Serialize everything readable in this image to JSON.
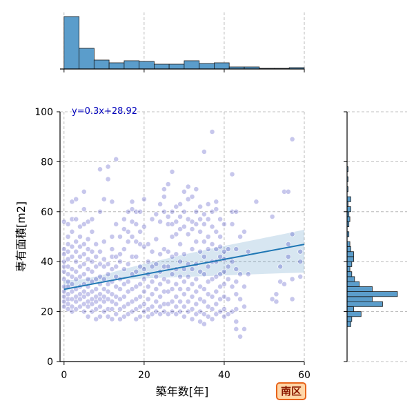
{
  "badge": "南区",
  "colors": {
    "point": "#0000aa",
    "regression": "#1f77b4",
    "histogram_fill": "#5b9dcb",
    "badge_border": "#e8641b",
    "badge_fill": "#ffd7a8"
  },
  "chart_data": {
    "type": "scatter",
    "title": "",
    "xlabel": "築年数[年]",
    "ylabel": "専有面積[m2]",
    "xlim": [
      -1,
      60
    ],
    "ylim": [
      0,
      100
    ],
    "xticks": [
      0,
      20,
      40,
      60
    ],
    "yticks": [
      0,
      20,
      40,
      60,
      80,
      100
    ],
    "grid": true,
    "regression": {
      "label": "y=0.3x+28.92",
      "slope": 0.3,
      "intercept": 28.92,
      "x_range": [
        0,
        60
      ],
      "ci_lower": [
        28.0,
        30.8,
        32.0,
        32.8,
        33.3,
        33.6,
        33.9,
        34.2,
        34.5,
        34.8,
        35.1,
        35.4,
        35.6
      ],
      "ci_upper": [
        32.4,
        33.0,
        34.8,
        37.1,
        39.1,
        41.0,
        42.9,
        44.6,
        46.3,
        47.9,
        49.5,
        51.1,
        52.8
      ]
    },
    "points": [
      [
        0,
        22
      ],
      [
        0,
        24
      ],
      [
        0,
        26
      ],
      [
        0,
        28
      ],
      [
        0,
        30
      ],
      [
        0,
        33
      ],
      [
        0,
        36
      ],
      [
        0,
        38
      ],
      [
        0,
        40
      ],
      [
        0,
        43
      ],
      [
        0,
        45
      ],
      [
        0,
        56
      ],
      [
        1,
        21
      ],
      [
        1,
        23
      ],
      [
        1,
        25
      ],
      [
        1,
        27
      ],
      [
        1,
        30
      ],
      [
        1,
        32
      ],
      [
        1,
        35
      ],
      [
        1,
        38
      ],
      [
        1,
        41
      ],
      [
        1,
        44
      ],
      [
        1,
        47
      ],
      [
        1,
        50
      ],
      [
        1,
        55
      ],
      [
        2,
        20
      ],
      [
        2,
        22
      ],
      [
        2,
        25
      ],
      [
        2,
        28
      ],
      [
        2,
        31
      ],
      [
        2,
        34
      ],
      [
        2,
        37
      ],
      [
        2,
        42
      ],
      [
        2,
        46
      ],
      [
        2,
        52
      ],
      [
        2,
        57
      ],
      [
        2,
        64
      ],
      [
        3,
        21
      ],
      [
        3,
        24
      ],
      [
        3,
        26
      ],
      [
        3,
        29
      ],
      [
        3,
        33
      ],
      [
        3,
        36
      ],
      [
        3,
        40
      ],
      [
        3,
        44
      ],
      [
        3,
        48
      ],
      [
        3,
        57
      ],
      [
        3,
        65
      ],
      [
        4,
        22
      ],
      [
        4,
        25
      ],
      [
        4,
        27
      ],
      [
        4,
        30
      ],
      [
        4,
        34
      ],
      [
        4,
        38
      ],
      [
        4,
        42
      ],
      [
        4,
        46
      ],
      [
        4,
        50
      ],
      [
        4,
        54
      ],
      [
        5,
        20
      ],
      [
        5,
        23
      ],
      [
        5,
        26
      ],
      [
        5,
        28
      ],
      [
        5,
        31
      ],
      [
        5,
        35
      ],
      [
        5,
        39
      ],
      [
        5,
        43
      ],
      [
        5,
        47
      ],
      [
        5,
        55
      ],
      [
        5,
        61
      ],
      [
        5,
        68
      ],
      [
        6,
        18
      ],
      [
        6,
        22
      ],
      [
        6,
        24
      ],
      [
        6,
        27
      ],
      [
        6,
        30
      ],
      [
        6,
        33
      ],
      [
        6,
        37
      ],
      [
        6,
        41
      ],
      [
        6,
        45
      ],
      [
        6,
        49
      ],
      [
        6,
        56
      ],
      [
        7,
        20
      ],
      [
        7,
        23
      ],
      [
        7,
        25
      ],
      [
        7,
        28
      ],
      [
        7,
        32
      ],
      [
        7,
        36
      ],
      [
        7,
        40
      ],
      [
        7,
        44
      ],
      [
        7,
        52
      ],
      [
        7,
        57
      ],
      [
        8,
        17
      ],
      [
        8,
        21
      ],
      [
        8,
        24
      ],
      [
        8,
        26
      ],
      [
        8,
        29
      ],
      [
        8,
        33
      ],
      [
        8,
        38
      ],
      [
        8,
        42
      ],
      [
        8,
        47
      ],
      [
        9,
        18
      ],
      [
        9,
        22
      ],
      [
        9,
        25
      ],
      [
        9,
        27
      ],
      [
        9,
        31
      ],
      [
        9,
        34
      ],
      [
        9,
        39
      ],
      [
        9,
        44
      ],
      [
        9,
        60
      ],
      [
        9,
        77
      ],
      [
        10,
        20
      ],
      [
        10,
        24
      ],
      [
        10,
        26
      ],
      [
        10,
        29
      ],
      [
        10,
        33
      ],
      [
        10,
        38
      ],
      [
        10,
        41
      ],
      [
        10,
        48
      ],
      [
        10,
        65
      ],
      [
        11,
        18
      ],
      [
        11,
        21
      ],
      [
        11,
        25
      ],
      [
        11,
        28
      ],
      [
        11,
        31
      ],
      [
        11,
        35
      ],
      [
        11,
        39
      ],
      [
        11,
        73
      ],
      [
        11,
        78
      ],
      [
        12,
        17
      ],
      [
        12,
        21
      ],
      [
        12,
        24
      ],
      [
        12,
        27
      ],
      [
        12,
        32
      ],
      [
        12,
        37
      ],
      [
        12,
        42
      ],
      [
        12,
        45
      ],
      [
        12,
        50
      ],
      [
        12,
        64
      ],
      [
        13,
        19
      ],
      [
        13,
        23
      ],
      [
        13,
        26
      ],
      [
        13,
        30
      ],
      [
        13,
        34
      ],
      [
        13,
        38
      ],
      [
        13,
        42
      ],
      [
        13,
        55
      ],
      [
        13,
        81
      ],
      [
        14,
        17
      ],
      [
        14,
        21
      ],
      [
        14,
        25
      ],
      [
        14,
        29
      ],
      [
        14,
        33
      ],
      [
        14,
        40
      ],
      [
        14,
        43
      ],
      [
        14,
        50
      ],
      [
        15,
        18
      ],
      [
        15,
        22
      ],
      [
        15,
        26
      ],
      [
        15,
        31
      ],
      [
        15,
        37
      ],
      [
        15,
        45
      ],
      [
        15,
        53
      ],
      [
        15,
        57
      ],
      [
        16,
        19
      ],
      [
        16,
        23
      ],
      [
        16,
        28
      ],
      [
        16,
        32
      ],
      [
        16,
        39
      ],
      [
        16,
        48
      ],
      [
        16,
        52
      ],
      [
        16,
        60
      ],
      [
        17,
        20
      ],
      [
        17,
        24
      ],
      [
        17,
        29
      ],
      [
        17,
        35
      ],
      [
        17,
        42
      ],
      [
        17,
        50
      ],
      [
        17,
        56
      ],
      [
        17,
        61
      ],
      [
        17,
        64
      ],
      [
        18,
        17
      ],
      [
        18,
        21
      ],
      [
        18,
        25
      ],
      [
        18,
        30
      ],
      [
        18,
        36
      ],
      [
        18,
        42
      ],
      [
        18,
        48
      ],
      [
        18,
        55
      ],
      [
        18,
        60
      ],
      [
        19,
        18
      ],
      [
        19,
        22
      ],
      [
        19,
        26
      ],
      [
        19,
        31
      ],
      [
        19,
        38
      ],
      [
        19,
        47
      ],
      [
        19,
        52
      ],
      [
        19,
        60
      ],
      [
        20,
        20
      ],
      [
        20,
        23
      ],
      [
        20,
        28
      ],
      [
        20,
        33
      ],
      [
        20,
        37
      ],
      [
        20,
        46
      ],
      [
        20,
        54
      ],
      [
        20,
        65
      ],
      [
        21,
        18
      ],
      [
        21,
        21
      ],
      [
        21,
        25
      ],
      [
        21,
        30
      ],
      [
        21,
        35
      ],
      [
        21,
        40
      ],
      [
        21,
        47
      ],
      [
        22,
        19
      ],
      [
        22,
        22
      ],
      [
        22,
        27
      ],
      [
        22,
        32
      ],
      [
        22,
        38
      ],
      [
        22,
        44
      ],
      [
        22,
        57
      ],
      [
        23,
        20
      ],
      [
        23,
        24
      ],
      [
        23,
        29
      ],
      [
        23,
        34
      ],
      [
        23,
        39
      ],
      [
        23,
        49
      ],
      [
        23,
        59
      ],
      [
        24,
        19
      ],
      [
        24,
        22
      ],
      [
        24,
        26
      ],
      [
        24,
        31
      ],
      [
        24,
        36
      ],
      [
        24,
        43
      ],
      [
        24,
        56
      ],
      [
        24,
        63
      ],
      [
        25,
        20
      ],
      [
        25,
        23
      ],
      [
        25,
        28
      ],
      [
        25,
        33
      ],
      [
        25,
        38
      ],
      [
        25,
        45
      ],
      [
        25,
        60
      ],
      [
        25,
        66
      ],
      [
        25,
        69
      ],
      [
        26,
        19
      ],
      [
        26,
        23
      ],
      [
        26,
        28
      ],
      [
        26,
        32
      ],
      [
        26,
        38
      ],
      [
        26,
        44
      ],
      [
        26,
        55
      ],
      [
        26,
        58
      ],
      [
        26,
        71
      ],
      [
        27,
        20
      ],
      [
        27,
        24
      ],
      [
        27,
        29
      ],
      [
        27,
        35
      ],
      [
        27,
        42
      ],
      [
        27,
        50
      ],
      [
        27,
        55
      ],
      [
        27,
        60
      ],
      [
        27,
        76
      ],
      [
        28,
        19
      ],
      [
        28,
        22
      ],
      [
        28,
        26
      ],
      [
        28,
        31
      ],
      [
        28,
        37
      ],
      [
        28,
        43
      ],
      [
        28,
        51
      ],
      [
        28,
        56
      ],
      [
        28,
        62
      ],
      [
        29,
        20
      ],
      [
        29,
        24
      ],
      [
        29,
        29
      ],
      [
        29,
        34
      ],
      [
        29,
        40
      ],
      [
        29,
        47
      ],
      [
        29,
        53
      ],
      [
        29,
        58
      ],
      [
        29,
        63
      ],
      [
        30,
        18
      ],
      [
        30,
        22
      ],
      [
        30,
        27
      ],
      [
        30,
        32
      ],
      [
        30,
        37
      ],
      [
        30,
        43
      ],
      [
        30,
        54
      ],
      [
        30,
        60
      ],
      [
        30,
        68
      ],
      [
        31,
        20
      ],
      [
        31,
        24
      ],
      [
        31,
        29
      ],
      [
        31,
        34
      ],
      [
        31,
        39
      ],
      [
        31,
        51
      ],
      [
        31,
        57
      ],
      [
        31,
        65
      ],
      [
        31,
        70
      ],
      [
        32,
        17
      ],
      [
        32,
        21
      ],
      [
        32,
        26
      ],
      [
        32,
        31
      ],
      [
        32,
        37
      ],
      [
        32,
        45
      ],
      [
        32,
        53
      ],
      [
        32,
        56
      ],
      [
        32,
        66
      ],
      [
        33,
        19
      ],
      [
        33,
        23
      ],
      [
        33,
        28
      ],
      [
        33,
        33
      ],
      [
        33,
        39
      ],
      [
        33,
        48
      ],
      [
        33,
        55
      ],
      [
        33,
        60
      ],
      [
        33,
        69
      ],
      [
        34,
        16
      ],
      [
        34,
        20
      ],
      [
        34,
        25
      ],
      [
        34,
        30
      ],
      [
        34,
        36
      ],
      [
        34,
        44
      ],
      [
        34,
        52
      ],
      [
        34,
        57
      ],
      [
        34,
        62
      ],
      [
        35,
        15
      ],
      [
        35,
        19
      ],
      [
        35,
        24
      ],
      [
        35,
        29
      ],
      [
        35,
        35
      ],
      [
        35,
        42
      ],
      [
        35,
        48
      ],
      [
        35,
        55
      ],
      [
        35,
        59
      ],
      [
        35,
        84
      ],
      [
        36,
        18
      ],
      [
        36,
        22
      ],
      [
        36,
        27
      ],
      [
        36,
        32
      ],
      [
        36,
        38
      ],
      [
        36,
        45
      ],
      [
        36,
        50
      ],
      [
        36,
        57
      ],
      [
        36,
        63
      ],
      [
        37,
        17
      ],
      [
        37,
        21
      ],
      [
        37,
        26
      ],
      [
        37,
        33
      ],
      [
        37,
        40
      ],
      [
        37,
        47
      ],
      [
        37,
        54
      ],
      [
        37,
        60
      ],
      [
        37,
        92
      ],
      [
        38,
        19
      ],
      [
        38,
        23
      ],
      [
        38,
        28
      ],
      [
        38,
        34
      ],
      [
        38,
        40
      ],
      [
        38,
        45
      ],
      [
        38,
        52
      ],
      [
        38,
        61
      ],
      [
        38,
        64
      ],
      [
        39,
        20
      ],
      [
        39,
        25
      ],
      [
        39,
        30
      ],
      [
        39,
        35
      ],
      [
        39,
        42
      ],
      [
        39,
        46
      ],
      [
        39,
        50
      ],
      [
        39,
        57
      ],
      [
        40,
        18
      ],
      [
        40,
        21
      ],
      [
        40,
        26
      ],
      [
        40,
        31
      ],
      [
        40,
        36
      ],
      [
        40,
        41
      ],
      [
        40,
        44
      ],
      [
        40,
        55
      ],
      [
        41,
        19
      ],
      [
        41,
        25
      ],
      [
        41,
        33
      ],
      [
        41,
        38
      ],
      [
        41,
        45
      ],
      [
        42,
        20
      ],
      [
        42,
        30
      ],
      [
        42,
        40
      ],
      [
        42,
        55
      ],
      [
        42,
        60
      ],
      [
        42,
        75
      ],
      [
        43,
        13
      ],
      [
        43,
        16
      ],
      [
        43,
        21
      ],
      [
        43,
        27
      ],
      [
        43,
        32
      ],
      [
        43,
        37
      ],
      [
        43,
        45
      ],
      [
        43,
        60
      ],
      [
        44,
        10
      ],
      [
        44,
        25
      ],
      [
        44,
        35
      ],
      [
        44,
        50
      ],
      [
        45,
        13
      ],
      [
        45,
        22
      ],
      [
        45,
        30
      ],
      [
        45,
        52
      ],
      [
        46,
        35
      ],
      [
        46,
        44
      ],
      [
        48,
        64
      ],
      [
        52,
        25
      ],
      [
        52,
        58
      ],
      [
        53,
        24
      ],
      [
        53,
        27
      ],
      [
        54,
        32
      ],
      [
        54,
        38
      ],
      [
        55,
        31
      ],
      [
        55,
        68
      ],
      [
        56,
        42
      ],
      [
        56,
        47
      ],
      [
        56,
        68
      ],
      [
        57,
        25
      ],
      [
        57,
        33
      ],
      [
        57,
        51
      ],
      [
        57,
        89
      ],
      [
        59,
        34
      ],
      [
        59,
        40
      ],
      [
        59,
        44
      ]
    ],
    "top_histogram": {
      "bin_edges": [
        0,
        3.75,
        7.5,
        11.25,
        15,
        18.75,
        22.5,
        26.25,
        30,
        33.75,
        37.5,
        41.25,
        45,
        48.75,
        52.5,
        56.25,
        60
      ],
      "counts": [
        76,
        30,
        13,
        9,
        12,
        11,
        7,
        7,
        12,
        8,
        9,
        3,
        3,
        1,
        1,
        2
      ]
    },
    "right_histogram": {
      "bin_edges": [
        14,
        16,
        18,
        20,
        22,
        24,
        26,
        28,
        30,
        32,
        34,
        36,
        38,
        40,
        42,
        44,
        46,
        48,
        50,
        52,
        54,
        56,
        58,
        60,
        62,
        64,
        66,
        68,
        70,
        72,
        74,
        76,
        78
      ],
      "counts": [
        4,
        5,
        15,
        7,
        38,
        27,
        54,
        27,
        13,
        8,
        5,
        3,
        5,
        7,
        7,
        4,
        3,
        0,
        2,
        0,
        2,
        3,
        2,
        4,
        1,
        4,
        0,
        1,
        0,
        1,
        0,
        1
      ]
    }
  }
}
